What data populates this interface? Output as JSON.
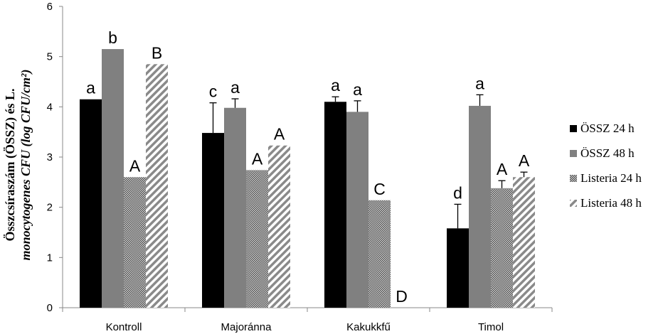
{
  "chart_data": {
    "type": "bar",
    "categories": [
      "Kontroll",
      "Majoránna",
      "Kakukkfű",
      "Timol"
    ],
    "ylim": [
      0,
      6
    ],
    "yticks": [
      "0",
      "1",
      "2",
      "3",
      "4",
      "5",
      "6"
    ],
    "ylabel_line1": "Összcsíraszám (ÖSSZ) és L.",
    "ylabel_line2": "monocytogenes CFU (log CFU/cm²)",
    "legend_position": "right",
    "series": [
      {
        "name": "ÖSSZ 24 h",
        "fill": "solid-black",
        "color": "#000000",
        "values": [
          4.15,
          3.48,
          4.1,
          1.58
        ],
        "errors": [
          0,
          0.6,
          0.1,
          0.48
        ],
        "letters": [
          "a",
          "c",
          "a",
          "d"
        ]
      },
      {
        "name": "ÖSSZ 48 h",
        "fill": "solid-gray",
        "color": "#808080",
        "values": [
          5.15,
          3.98,
          3.9,
          4.02
        ],
        "errors": [
          0,
          0.18,
          0.22,
          0.22
        ],
        "letters": [
          "b",
          "a",
          "a",
          "a"
        ]
      },
      {
        "name": "Listeria 24 h",
        "fill": "dotted",
        "color": "#8c8c8c",
        "values": [
          2.6,
          2.74,
          2.14,
          2.38
        ],
        "errors": [
          0,
          0,
          0,
          0.15
        ],
        "letters": [
          "A",
          "A",
          "C",
          "A"
        ]
      },
      {
        "name": "Listeria 48 h",
        "fill": "diagonal-hatch",
        "color": "#9a9a9a",
        "values": [
          4.85,
          3.23,
          0,
          2.6
        ],
        "errors": [
          0,
          0,
          0,
          0.1
        ],
        "letters": [
          "B",
          "A",
          "D",
          "A"
        ]
      }
    ]
  }
}
